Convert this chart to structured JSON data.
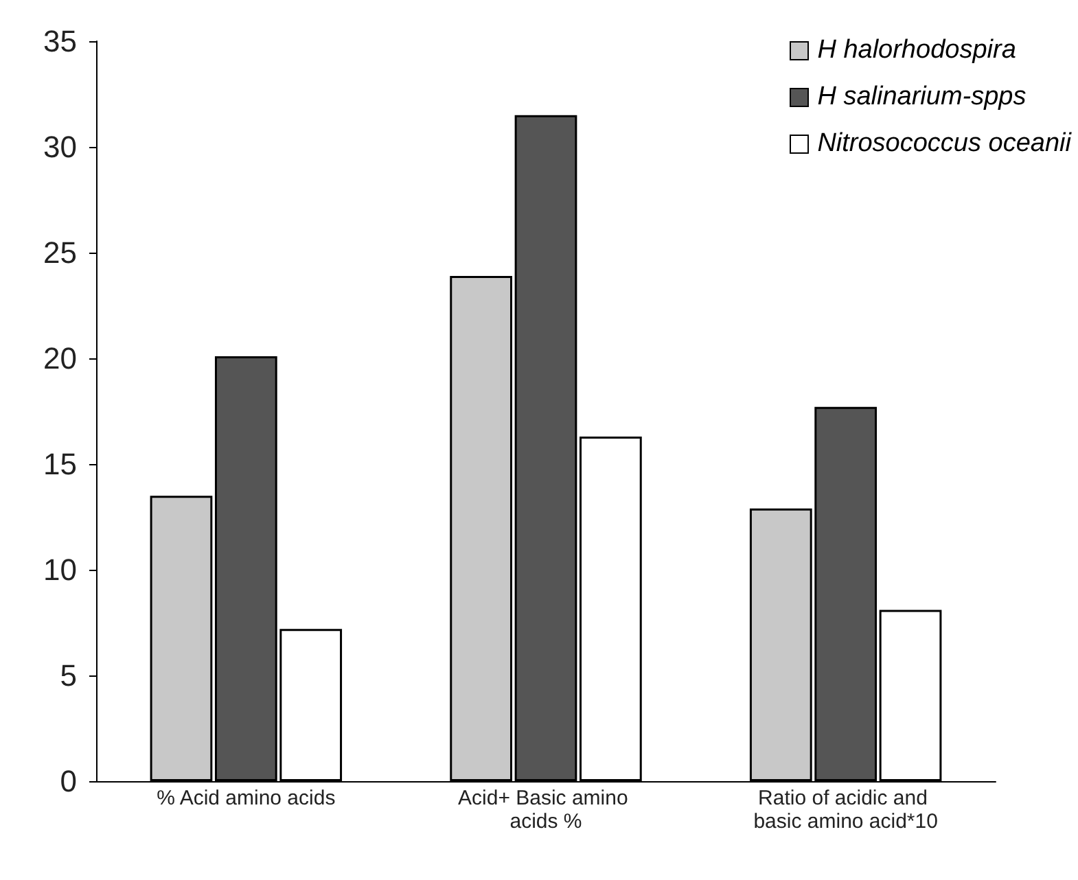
{
  "chart_data": {
    "type": "bar",
    "categories": [
      "% Acid amino acids",
      "Acid+ Basic amino acids %",
      "Ratio of acidic and basic amino acid*10"
    ],
    "series": [
      {
        "name": "H halorhodospira",
        "color": "#c8c8c8",
        "values": [
          13.5,
          23.9,
          12.9
        ]
      },
      {
        "name": "H salinarium-spps",
        "color": "#555555",
        "values": [
          20.1,
          31.5,
          17.7
        ]
      },
      {
        "name": "Nitrosococcus oceanii",
        "color": "#ffffff",
        "values": [
          7.2,
          16.3,
          8.1
        ]
      }
    ],
    "ylim": [
      0,
      35
    ],
    "yticks": [
      0,
      5,
      10,
      15,
      20,
      25,
      30,
      35
    ],
    "grid": false,
    "legend": "top right"
  }
}
